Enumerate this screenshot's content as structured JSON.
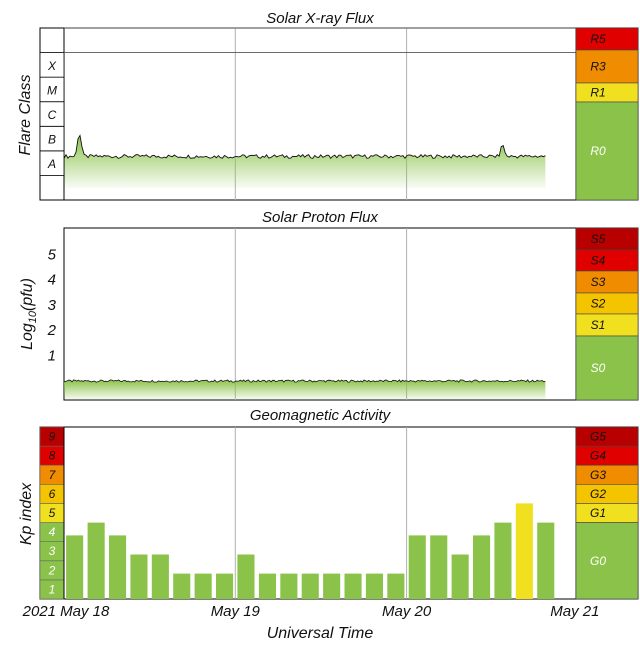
{
  "colors": {
    "green": "#8bc34a",
    "yellow": "#f0e020",
    "gold": "#f5c400",
    "orange": "#f08c00",
    "red_orange": "#f04010",
    "red": "#e00000",
    "dark_red": "#b80000",
    "gridline": "#b0b0b0"
  },
  "chart_data": [
    {
      "type": "area",
      "title": "Solar X-ray Flux",
      "ylabel": "Flare Class",
      "y_scale": "log",
      "ylim": [
        1e-09,
        0.01
      ],
      "class_labels": [
        {
          "label": "A",
          "value": 1e-08
        },
        {
          "label": "B",
          "value": 1e-07
        },
        {
          "label": "C",
          "value": 1e-06
        },
        {
          "label": "M",
          "value": 1e-05
        },
        {
          "label": "X",
          "value": 0.0001
        }
      ],
      "x_ticks": [
        "2021 May 18",
        "May 19",
        "May 20",
        "May 21"
      ],
      "baseline_flux": 6e-08,
      "notable_peaks": [
        {
          "day": 0.09,
          "flux": 4e-07
        },
        {
          "day": 2.56,
          "flux": 1.2e-07
        }
      ],
      "scale_labels": [
        "R5",
        "R3",
        "R1",
        "R0"
      ],
      "scale_colors": [
        "#e00000",
        "#f08c00",
        "#f0e020",
        "#8bc34a"
      ]
    },
    {
      "type": "area",
      "title": "Solar Proton Flux",
      "ylabel": "Log10(pfu)",
      "ylabel_main": "Log",
      "ylabel_sub": "10",
      "ylabel_tail": "(pfu)",
      "ylim": [
        -0.8,
        6
      ],
      "y_ticks": [
        "1",
        "2",
        "3",
        "4",
        "5"
      ],
      "baseline_log": -0.05,
      "scale_labels": [
        "S5",
        "S4",
        "S3",
        "S2",
        "S1",
        "S0"
      ],
      "scale_colors": [
        "#b80000",
        "#e00000",
        "#f08c00",
        "#f5c400",
        "#f0e020",
        "#8bc34a"
      ]
    },
    {
      "type": "bar",
      "title": "Geomagnetic Activity",
      "ylabel": "Kp index",
      "xlabel": "Universal Time",
      "ylim": [
        0,
        9
      ],
      "x_ticks": [
        "2021 May 18",
        "May 19",
        "May 20",
        "May 21"
      ],
      "kp_levels": [
        "1",
        "2",
        "3",
        "4",
        "5",
        "6",
        "7",
        "8",
        "9"
      ],
      "kp_level_colors": [
        "#8bc34a",
        "#8bc34a",
        "#8bc34a",
        "#8bc34a",
        "#f0e020",
        "#f5c400",
        "#f08c00",
        "#e00000",
        "#b80000"
      ],
      "bar_interval_hours": 3,
      "values": [
        3.33,
        4,
        3.33,
        2.33,
        2.33,
        1.33,
        1.33,
        1.33,
        2.33,
        1.33,
        1.33,
        1.33,
        1.33,
        1.33,
        1.33,
        1.33,
        3.33,
        3.33,
        2.33,
        3.33,
        4,
        5,
        4
      ],
      "bar_colors": [
        "#8bc34a",
        "#8bc34a",
        "#8bc34a",
        "#8bc34a",
        "#8bc34a",
        "#8bc34a",
        "#8bc34a",
        "#8bc34a",
        "#8bc34a",
        "#8bc34a",
        "#8bc34a",
        "#8bc34a",
        "#8bc34a",
        "#8bc34a",
        "#8bc34a",
        "#8bc34a",
        "#8bc34a",
        "#8bc34a",
        "#8bc34a",
        "#8bc34a",
        "#8bc34a",
        "#f0e020",
        "#8bc34a"
      ],
      "scale_labels": [
        "G5",
        "G4",
        "G3",
        "G2",
        "G1",
        "G0"
      ],
      "scale_colors": [
        "#b80000",
        "#e00000",
        "#f08c00",
        "#f5c400",
        "#f0e020",
        "#8bc34a"
      ]
    }
  ]
}
